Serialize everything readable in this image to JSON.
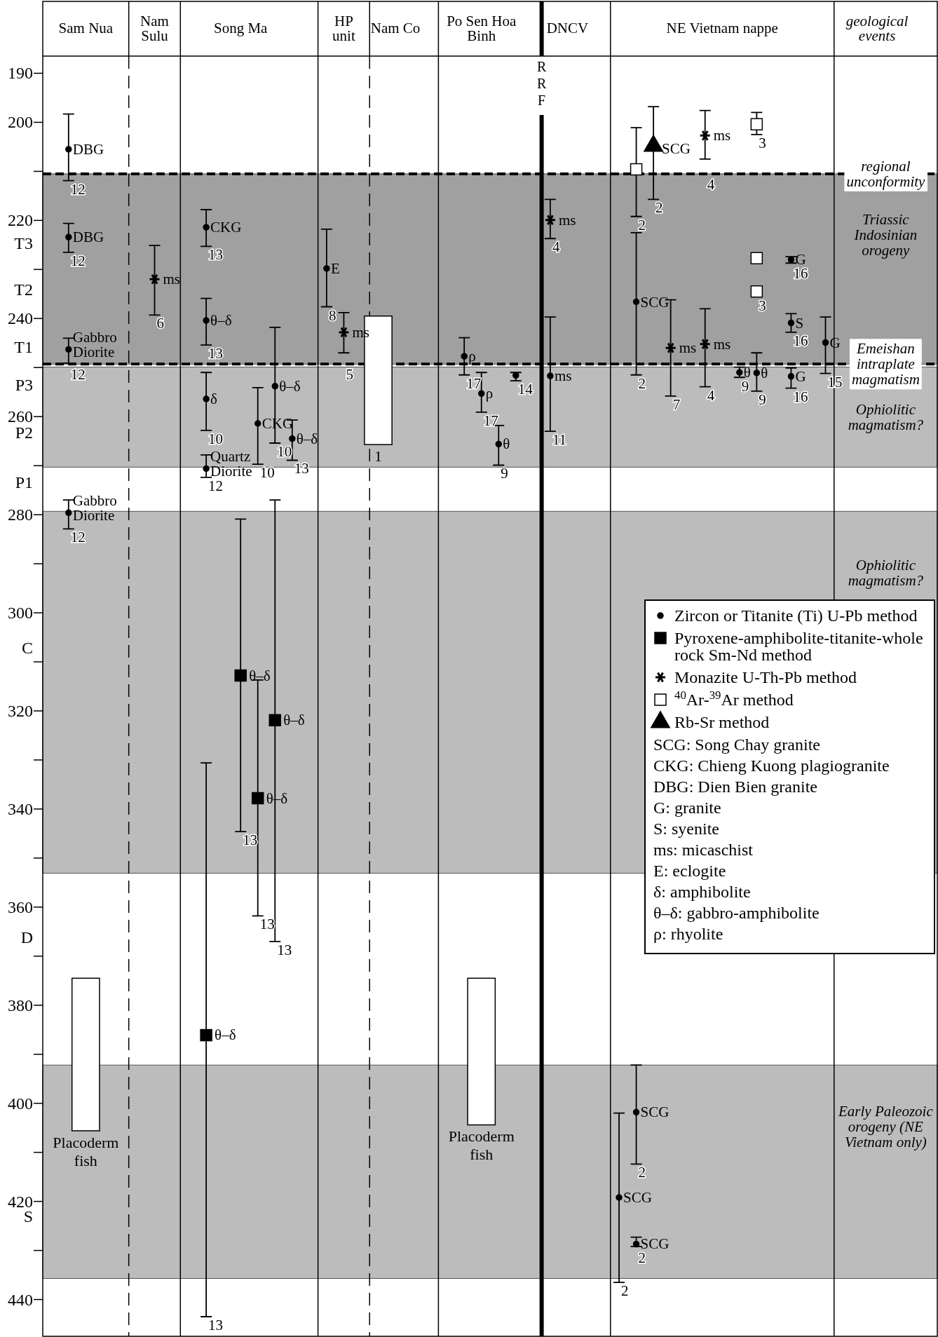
{
  "chart_data": {
    "type": "scatter",
    "categories": [
      null,
      null,
      "Sam Nua",
      null,
      null,
      null,
      "Nam Sulu",
      null,
      null,
      null,
      null,
      "Song Ma",
      null,
      null,
      null,
      null,
      null,
      "HP unit",
      null,
      null,
      "Nam Co",
      null,
      null,
      null,
      null,
      "Po Sen Hoa Binh",
      null,
      null,
      null,
      null,
      "DNCV",
      null,
      null,
      null,
      null,
      null,
      null,
      null,
      null,
      "NE Vietnam nappe",
      null,
      null,
      null,
      null,
      null,
      null,
      null,
      null,
      "geological events",
      null,
      null,
      null
    ],
    "ylim": [
      447.5,
      186.5
    ],
    "yticks": [
      190,
      200,
      {
        "value": 210,
        "label": null
      },
      220,
      {
        "value": 224.6,
        "label": "T3"
      },
      {
        "value": 230,
        "label": null
      },
      {
        "value": 234.1,
        "label": "T2"
      },
      240,
      {
        "value": 245.8,
        "label": "T1"
      },
      {
        "value": 250,
        "label": null
      },
      {
        "value": 253.6,
        "label": "P3"
      },
      260,
      {
        "value": 263.3,
        "label": "P2"
      },
      {
        "value": 270,
        "label": null
      },
      {
        "value": 273.4,
        "label": "P1"
      },
      280,
      {
        "value": 290,
        "label": null
      },
      300,
      {
        "value": 307.1,
        "label": "C"
      },
      {
        "value": 310,
        "label": null
      },
      320,
      {
        "value": 330,
        "label": null
      },
      340,
      {
        "value": 350,
        "label": null
      },
      360,
      {
        "value": 366.2,
        "label": "D"
      },
      {
        "value": 370,
        "label": null
      },
      380,
      {
        "value": 390,
        "label": null
      },
      400,
      {
        "value": 410,
        "label": null
      },
      420,
      {
        "value": 423.1,
        "label": "S"
      },
      {
        "value": 430,
        "label": null
      },
      440
    ],
    "legend": "right",
    "series": [
      {
        "type": "bar",
        "color": "#ffffff",
        "values": [
          null,
          null,
          31.1,
          null,
          null,
          null,
          null,
          null,
          null,
          null,
          null,
          null,
          null,
          null,
          null,
          null,
          null,
          null,
          null,
          26.2,
          null,
          null,
          null,
          null,
          null,
          29.9,
          null,
          null,
          null,
          null,
          null,
          null,
          null,
          null,
          null,
          null,
          null,
          null,
          null,
          null,
          null,
          null,
          null,
          null,
          null,
          null,
          null,
          null,
          null,
          null,
          null,
          null
        ],
        "base": [
          null,
          null,
          374.5,
          null,
          null,
          null,
          null,
          null,
          null,
          null,
          null,
          null,
          null,
          null,
          null,
          null,
          null,
          null,
          null,
          239.5,
          null,
          null,
          null,
          null,
          null,
          374.5,
          null,
          null,
          null,
          null,
          null,
          null,
          null,
          null,
          null,
          null,
          null,
          null,
          null,
          null,
          null,
          null,
          null,
          null,
          null,
          null,
          null,
          null,
          null,
          null,
          null,
          null
        ]
      },
      {
        "name": "Zircon or Titanite (Ti) U-Pb method",
        "marker": "circle",
        "color": "#000000",
        "values": [
          null,
          205.5,
          null,
          null,
          null,
          null,
          null,
          null,
          null,
          221.4,
          null,
          null,
          261.4,
          253.8,
          264.5,
          null,
          229.8,
          null,
          null,
          null,
          null,
          null,
          null,
          null,
          247.7,
          255.3,
          265.6,
          251.6,
          null,
          251.7,
          null,
          null,
          null,
          419.2,
          236.6,
          null,
          null,
          null,
          null,
          null,
          251.0,
          251.1,
          null,
          228.0,
          null,
          244.9,
          null,
          null,
          null,
          null,
          null,
          null
        ],
        "errors": [
          null,
          [
            198.3,
            211.9
          ],
          null,
          null,
          null,
          null,
          null,
          null,
          null,
          [
            217.8,
            225.3
          ],
          null,
          null,
          [
            254.1,
            269.7
          ],
          [
            241.8,
            265.4
          ],
          [
            260.7,
            268.9
          ],
          null,
          [
            221.8,
            237.6
          ],
          null,
          null,
          null,
          null,
          null,
          null,
          null,
          [
            243.9,
            251.5
          ],
          [
            251.0,
            259.1
          ],
          [
            261.8,
            269.9
          ],
          [
            251.0,
            252.7
          ],
          null,
          [
            239.7,
            263.0
          ],
          null,
          null,
          null,
          [
            402.0,
            436.5
          ],
          [
            222.5,
            251.5
          ],
          null,
          null,
          null,
          null,
          null,
          [
            249.9,
            252.0
          ],
          [
            247.0,
            254.8
          ],
          null,
          [
            227.4,
            228.7
          ],
          null,
          [
            239.7,
            251.2
          ],
          null,
          null,
          null,
          null,
          null,
          null
        ]
      },
      {
        "marker": "circle",
        "color": "#000000",
        "values": [
          null,
          223.4,
          null,
          null,
          null,
          null,
          null,
          null,
          null,
          240.4,
          null,
          null,
          null,
          null,
          null,
          null,
          null,
          null,
          null,
          null,
          null,
          null,
          null,
          null,
          null,
          null,
          null,
          null,
          null,
          null,
          null,
          null,
          null,
          null,
          401.8,
          null,
          null,
          null,
          null,
          null,
          null,
          null,
          null,
          240.9,
          null,
          null,
          null,
          null,
          null,
          null,
          null,
          null
        ],
        "errors": [
          null,
          [
            220.6,
            226.5
          ],
          null,
          null,
          null,
          null,
          null,
          null,
          null,
          [
            235.9,
            245.4
          ],
          null,
          null,
          null,
          null,
          null,
          null,
          null,
          null,
          null,
          null,
          null,
          null,
          null,
          null,
          null,
          null,
          null,
          null,
          null,
          null,
          null,
          null,
          null,
          null,
          [
            392.2,
            412.4
          ],
          null,
          null,
          null,
          null,
          null,
          null,
          null,
          null,
          [
            239.0,
            242.8
          ],
          null,
          null,
          null,
          null,
          null,
          null,
          null,
          null
        ]
      },
      {
        "marker": "circle",
        "color": "#000000",
        "values": [
          null,
          246.3,
          null,
          null,
          null,
          null,
          null,
          null,
          null,
          256.4,
          null,
          null,
          null,
          null,
          null,
          null,
          null,
          null,
          null,
          null,
          null,
          null,
          null,
          null,
          null,
          null,
          null,
          null,
          null,
          null,
          null,
          null,
          null,
          null,
          428.7,
          null,
          null,
          null,
          null,
          null,
          null,
          null,
          null,
          251.8,
          null,
          null,
          null,
          null,
          null,
          null,
          null,
          null
        ],
        "errors": [
          null,
          [
            244.0,
            249.1
          ],
          null,
          null,
          null,
          null,
          null,
          null,
          null,
          [
            251.0,
            262.8
          ],
          null,
          null,
          null,
          null,
          null,
          null,
          null,
          null,
          null,
          null,
          null,
          null,
          null,
          null,
          null,
          null,
          null,
          null,
          null,
          null,
          null,
          null,
          null,
          null,
          [
            427.3,
            429.2
          ],
          null,
          null,
          null,
          null,
          null,
          null,
          null,
          null,
          [
            250.1,
            254.2
          ],
          null,
          null,
          null,
          null,
          null,
          null,
          null,
          null
        ]
      },
      {
        "marker": "circle",
        "color": "#000000",
        "values": [
          null,
          279.6,
          null,
          null,
          null,
          null,
          null,
          null,
          null,
          270.6,
          null,
          null,
          null,
          null,
          null,
          null,
          null,
          null,
          null,
          null,
          null,
          null,
          null,
          null,
          null,
          null,
          null,
          null,
          null,
          null,
          null,
          null,
          null,
          null,
          null,
          null,
          null,
          null,
          null,
          null,
          null,
          null,
          null,
          null,
          null,
          null,
          null,
          null,
          null,
          null,
          null,
          null
        ],
        "errors": [
          null,
          [
            277.0,
            282.9
          ],
          null,
          null,
          null,
          null,
          null,
          null,
          null,
          [
            267.8,
            272.4
          ],
          null,
          null,
          null,
          null,
          null,
          null,
          null,
          null,
          null,
          null,
          null,
          null,
          null,
          null,
          null,
          null,
          null,
          null,
          null,
          null,
          null,
          null,
          null,
          null,
          null,
          null,
          null,
          null,
          null,
          null,
          null,
          null,
          null,
          null,
          null,
          null,
          null,
          null,
          null,
          null,
          null,
          null
        ]
      },
      {
        "name": "Pyroxene-amphibolite-titanite-whole rock Sm-Nd method",
        "marker": "square",
        "color": "#000000",
        "values": [
          null,
          null,
          null,
          null,
          null,
          null,
          null,
          null,
          null,
          386.1,
          null,
          312.8,
          337.8,
          321.9,
          null,
          null,
          null,
          null,
          null,
          null,
          null,
          null,
          null,
          null,
          null,
          null,
          null,
          null,
          null,
          null,
          null,
          null,
          null,
          null,
          null,
          null,
          null,
          null,
          null,
          null,
          null,
          null,
          null,
          null,
          null,
          null,
          null,
          null,
          null,
          null,
          null,
          null
        ],
        "errors": [
          null,
          null,
          null,
          null,
          null,
          null,
          null,
          null,
          null,
          [
            330.6,
            443.5
          ],
          null,
          [
            280.9,
            344.6
          ],
          [
            313.7,
            361.8
          ],
          [
            277.0,
            367.0
          ],
          null,
          null,
          null,
          null,
          null,
          null,
          null,
          null,
          null,
          null,
          null,
          null,
          null,
          null,
          null,
          null,
          null,
          null,
          null,
          null,
          null,
          null,
          null,
          null,
          null,
          null,
          null,
          null,
          null,
          null,
          null,
          null,
          null,
          null,
          null,
          null,
          null,
          null
        ]
      },
      {
        "name": "Monazite U-Th-Pb method",
        "marker": "cross",
        "color": "#000000",
        "values": [
          null,
          null,
          null,
          null,
          null,
          null,
          232.0,
          null,
          null,
          null,
          null,
          null,
          null,
          null,
          null,
          null,
          null,
          242.8,
          null,
          null,
          null,
          null,
          null,
          null,
          null,
          null,
          null,
          null,
          null,
          219.9,
          null,
          null,
          null,
          null,
          null,
          null,
          246.0,
          null,
          202.7,
          null,
          null,
          null,
          null,
          null,
          null,
          null,
          null,
          null,
          null,
          null,
          null,
          null
        ],
        "errors": [
          null,
          null,
          null,
          null,
          null,
          null,
          [
            225.1,
            239.3
          ],
          null,
          null,
          null,
          null,
          null,
          null,
          null,
          null,
          null,
          null,
          [
            238.8,
            247.0
          ],
          null,
          null,
          null,
          null,
          null,
          null,
          null,
          null,
          null,
          null,
          null,
          [
            215.7,
            223.7
          ],
          null,
          null,
          null,
          null,
          null,
          null,
          [
            236.2,
            255.8
          ],
          null,
          [
            197.6,
            207.5
          ],
          null,
          null,
          null,
          null,
          null,
          null,
          null,
          null,
          null,
          null,
          null,
          null,
          null
        ]
      },
      {
        "marker": "cross",
        "color": "#000000",
        "values": [
          null,
          null,
          null,
          null,
          null,
          null,
          null,
          null,
          null,
          null,
          null,
          null,
          null,
          null,
          null,
          null,
          null,
          null,
          null,
          null,
          null,
          null,
          null,
          null,
          null,
          null,
          null,
          null,
          null,
          null,
          null,
          null,
          null,
          null,
          null,
          null,
          null,
          null,
          245.2,
          null,
          null,
          null,
          null,
          null,
          null,
          null,
          null,
          null,
          null,
          null,
          null,
          null
        ],
        "errors": [
          null,
          null,
          null,
          null,
          null,
          null,
          null,
          null,
          null,
          null,
          null,
          null,
          null,
          null,
          null,
          null,
          null,
          null,
          null,
          null,
          null,
          null,
          null,
          null,
          null,
          null,
          null,
          null,
          null,
          null,
          null,
          null,
          null,
          null,
          null,
          null,
          null,
          null,
          [
            238.0,
            253.9
          ],
          null,
          null,
          null,
          null,
          null,
          null,
          null,
          null,
          null,
          null,
          null,
          null,
          null
        ]
      },
      {
        "name": "$^{40}$Ar-$^{39}$Ar  method",
        "marker": "square",
        "color": "#ffffff",
        "values": [
          null,
          null,
          null,
          null,
          null,
          null,
          null,
          null,
          null,
          null,
          null,
          null,
          null,
          null,
          null,
          null,
          null,
          null,
          null,
          null,
          null,
          null,
          null,
          null,
          null,
          null,
          null,
          null,
          null,
          null,
          null,
          null,
          null,
          null,
          209.6,
          null,
          null,
          null,
          null,
          null,
          null,
          200.4,
          null,
          null,
          null,
          null,
          null,
          null,
          null,
          null,
          null,
          null
        ],
        "errors": [
          null,
          null,
          null,
          null,
          null,
          null,
          null,
          null,
          null,
          null,
          null,
          null,
          null,
          null,
          null,
          null,
          null,
          null,
          null,
          null,
          null,
          null,
          null,
          null,
          null,
          null,
          null,
          null,
          null,
          null,
          null,
          null,
          null,
          null,
          [
            201.1,
            219.2
          ],
          null,
          null,
          null,
          null,
          null,
          null,
          [
            198.0,
            202.5
          ],
          null,
          null,
          null,
          null,
          null,
          null,
          null,
          null,
          null,
          null
        ]
      },
      {
        "marker": "square",
        "color": "#ffffff",
        "values": [
          null,
          null,
          null,
          null,
          null,
          null,
          null,
          null,
          null,
          null,
          null,
          null,
          null,
          null,
          null,
          null,
          null,
          null,
          null,
          null,
          null,
          null,
          null,
          null,
          null,
          null,
          null,
          null,
          null,
          null,
          null,
          null,
          null,
          null,
          null,
          null,
          null,
          null,
          null,
          null,
          null,
          234.5,
          null,
          null,
          null,
          null,
          null,
          null,
          null,
          null,
          null,
          null
        ]
      },
      {
        "marker": "square",
        "color": "#ffffff",
        "values": [
          null,
          null,
          null,
          null,
          null,
          null,
          null,
          null,
          null,
          null,
          null,
          null,
          null,
          null,
          null,
          null,
          null,
          null,
          null,
          null,
          null,
          null,
          null,
          null,
          null,
          null,
          null,
          null,
          null,
          null,
          null,
          null,
          null,
          null,
          null,
          null,
          null,
          null,
          null,
          null,
          null,
          227.7,
          null,
          null,
          null,
          null,
          null,
          null,
          null,
          null,
          null,
          null
        ]
      },
      {
        "name": "Rb-Sr method",
        "marker": "triangle",
        "color": "#000000",
        "values": [
          null,
          null,
          null,
          null,
          null,
          null,
          null,
          null,
          null,
          null,
          null,
          null,
          null,
          null,
          null,
          null,
          null,
          null,
          null,
          null,
          null,
          null,
          null,
          null,
          null,
          null,
          null,
          null,
          null,
          null,
          null,
          null,
          null,
          null,
          null,
          205.4,
          null,
          null,
          null,
          null,
          null,
          null,
          null,
          null,
          null,
          null,
          null,
          null,
          null,
          null,
          null,
          null
        ],
        "errors": [
          null,
          null,
          null,
          null,
          null,
          null,
          null,
          null,
          null,
          null,
          null,
          null,
          null,
          null,
          null,
          null,
          null,
          null,
          null,
          null,
          null,
          null,
          null,
          null,
          null,
          null,
          null,
          null,
          null,
          null,
          null,
          null,
          null,
          null,
          null,
          [
            196.8,
            215.7
          ],
          null,
          null,
          null,
          null,
          null,
          null,
          null,
          null,
          null,
          null,
          null,
          null,
          null,
          null,
          null,
          null
        ]
      }
    ],
    "bands": [
      {
        "axis": "y",
        "from": 210.5,
        "to": 249.3,
        "label": "Triassic Indosinian orogeny",
        "color": "#a0a0a0"
      },
      {
        "axis": "y",
        "from": 249.9,
        "to": 270.3,
        "label": "Ophiolitic magmatism?",
        "color": "#bcbcbc"
      },
      {
        "axis": "y",
        "from": 279.3,
        "to": 353.1,
        "label": "Ophiolitic magmatism?",
        "color": "#bcbcbc"
      },
      {
        "axis": "y",
        "from": 392.2,
        "to": 435.7,
        "label": "Early Paleozoic orogeny (NE Vietnam only)",
        "color": "#bcbcbc"
      }
    ],
    "ref_lines": [
      {
        "axis": "y",
        "value": 210.5,
        "label": "regional unconformity",
        "line_style": "dashed",
        "color": "#000000"
      },
      {
        "axis": "y",
        "value": 249.3,
        "label": "Emeishan intraplate magmatism",
        "line_style": "dashed",
        "color": "#000000"
      }
    ],
    "annotations": [
      "RRF",
      "Placoderm fish",
      "1",
      "Placoderm fish",
      "DBG",
      "12",
      "CKG",
      "13",
      "CKG",
      "10",
      "θ–δ",
      "10",
      "θ–δ",
      "13",
      "E",
      "8",
      "ρ",
      "17",
      "ρ",
      "17",
      "θ",
      "9",
      "14",
      "ms",
      "11",
      "SCG",
      "2",
      "SCG",
      "2",
      "θ",
      "9",
      "θ",
      "9",
      "G",
      "16",
      "G",
      "15",
      "DBG",
      "12",
      "θ–δ",
      "13",
      "SCG",
      "2",
      "S",
      "16",
      "Gabbro Diorite",
      "12",
      "δ",
      "10",
      "SCG",
      "2",
      "G",
      "16",
      "Gabbro Diorite",
      "12",
      "Quartz Diorite",
      "12",
      "θ–δ",
      "13",
      "θ–δ",
      "13",
      "θ–δ",
      "13",
      "θ–δ",
      "13",
      "ms",
      "6",
      "ms",
      "5",
      "ms",
      "4",
      "ms",
      "7",
      "ms",
      "4",
      "ms",
      "4",
      "2",
      "3",
      "3",
      "SCG",
      "2",
      "SCG: Song Chay granite",
      "CKG: Chieng Kuong plagiogranite",
      "DBG: Dien Bien granite",
      "G: granite",
      "S: syenite",
      "ms: micaschist",
      "E: eclogite",
      "δ: amphibolite",
      "θ–δ: gabbro-amphibolite",
      "ρ: rhyolite"
    ]
  }
}
